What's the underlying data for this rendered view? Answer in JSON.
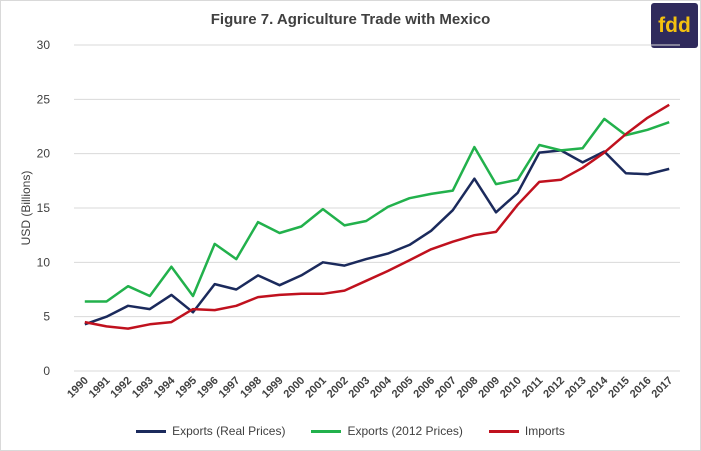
{
  "logo_text": "fdd",
  "colors": {
    "real": "#1b2a5c",
    "nominal2012": "#22b14c",
    "imports": "#c0111e",
    "grid": "#d9d9d9",
    "text": "#404040"
  },
  "chart_data": {
    "type": "line",
    "title": "Figure 7. Agriculture Trade with Mexico",
    "ylabel": "USD (Billions)",
    "xlabel": "",
    "ylim": [
      0,
      30
    ],
    "yticks": [
      0,
      5,
      10,
      15,
      20,
      25,
      30
    ],
    "grid": true,
    "legend_position": "bottom",
    "x": [
      "1990",
      "1991",
      "1992",
      "1993",
      "1994",
      "1995",
      "1996",
      "1997",
      "1998",
      "1999",
      "2000",
      "2001",
      "2002",
      "2003",
      "2004",
      "2005",
      "2006",
      "2007",
      "2008",
      "2009",
      "2010",
      "2011",
      "2012",
      "2013",
      "2014",
      "2015",
      "2016",
      "2017"
    ],
    "series": [
      {
        "name": "Exports (Real Prices)",
        "color_key": "real",
        "values": [
          4.3,
          5.0,
          6.0,
          5.7,
          7.0,
          5.4,
          8.0,
          7.5,
          8.8,
          7.9,
          8.8,
          10.0,
          9.7,
          10.3,
          10.8,
          11.6,
          12.9,
          14.8,
          17.7,
          14.6,
          16.4,
          20.1,
          20.3,
          19.2,
          20.2,
          18.2,
          18.1,
          18.6
        ]
      },
      {
        "name": "Exports (2012 Prices)",
        "color_key": "nominal2012",
        "values": [
          6.4,
          6.4,
          7.8,
          6.9,
          9.6,
          6.9,
          11.7,
          10.3,
          13.7,
          12.7,
          13.3,
          14.9,
          13.4,
          13.8,
          15.1,
          15.9,
          16.3,
          16.6,
          20.6,
          17.2,
          17.6,
          20.8,
          20.3,
          20.5,
          23.2,
          21.7,
          22.2,
          22.9
        ]
      },
      {
        "name": "Imports",
        "color_key": "imports",
        "values": [
          4.5,
          4.1,
          3.9,
          4.3,
          4.5,
          5.7,
          5.6,
          6.0,
          6.8,
          7.0,
          7.1,
          7.1,
          7.4,
          8.3,
          9.2,
          10.2,
          11.2,
          11.9,
          12.5,
          12.8,
          15.3,
          17.4,
          17.6,
          18.7,
          20.1,
          21.8,
          23.3,
          24.5
        ]
      }
    ]
  }
}
